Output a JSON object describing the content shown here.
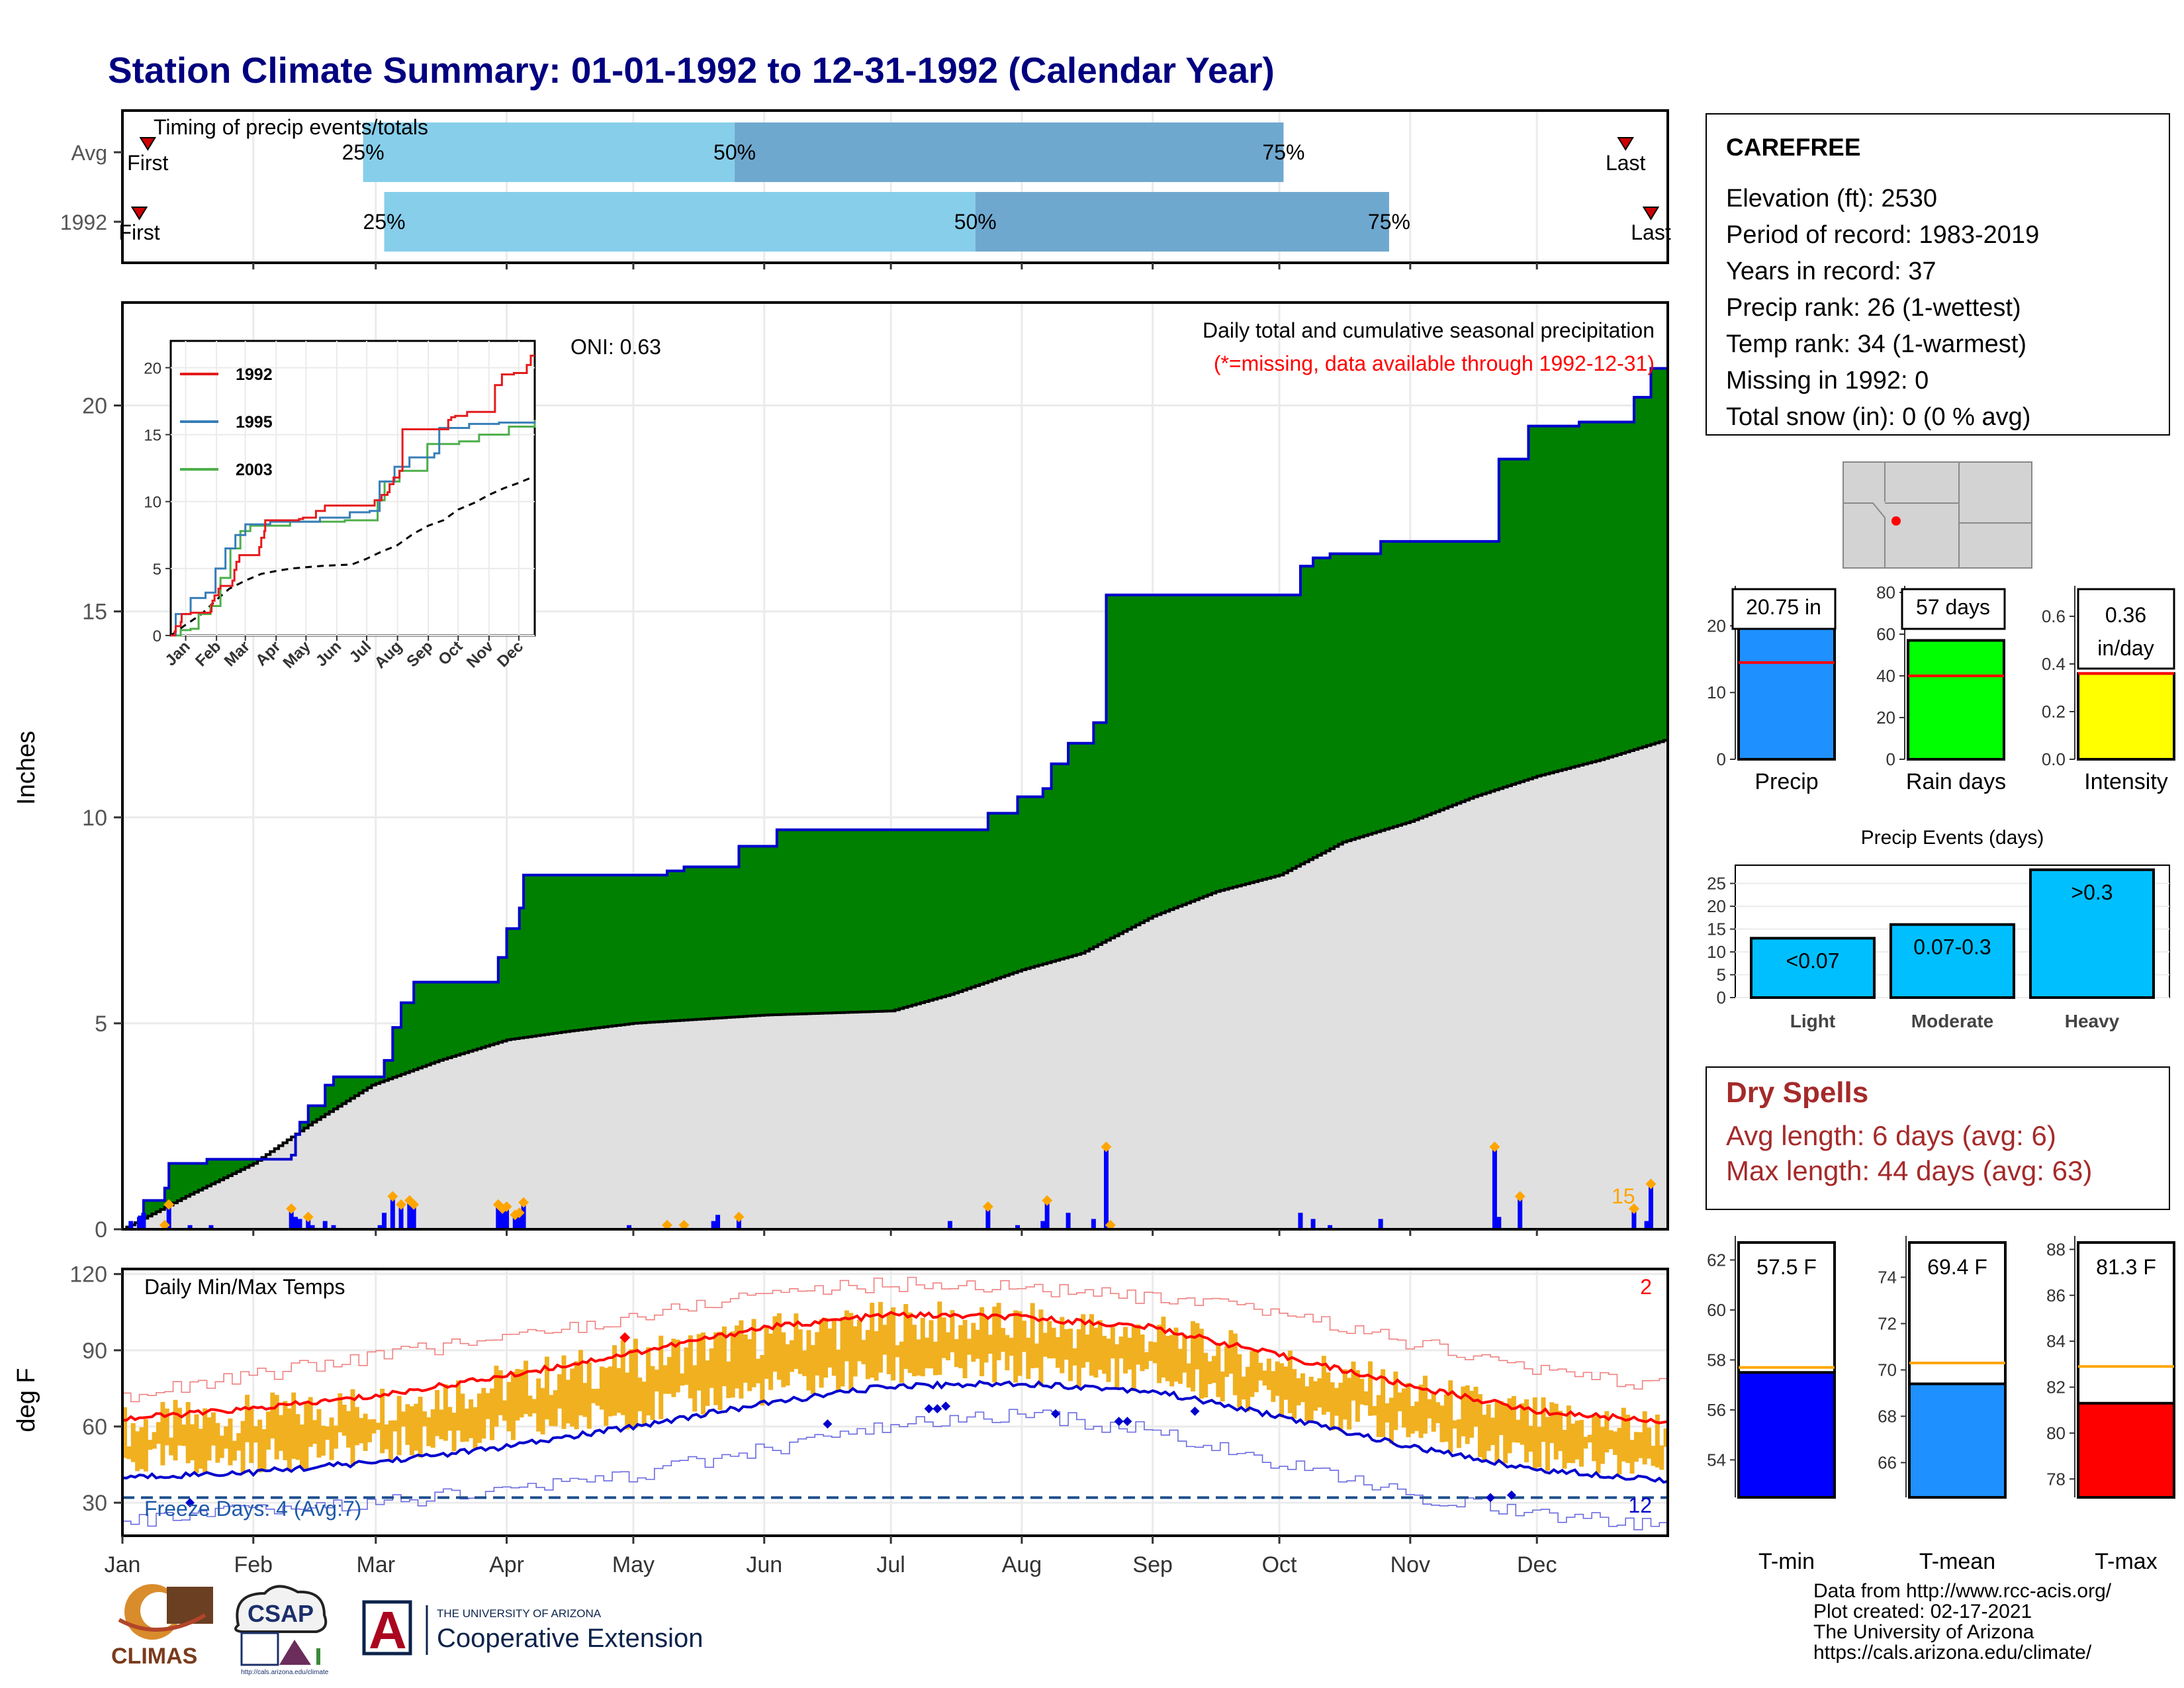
{
  "title": "Station Climate Summary: 01-01-1992 to 12-31-1992 (Calendar Year)",
  "timing_panel": {
    "title": "Timing of precip events/totals",
    "rows": [
      {
        "label": "Avg",
        "first_label": "First",
        "last_label": "Last",
        "first_day": 6,
        "p25_day": 57,
        "p50_day": 145,
        "p75_day": 275,
        "last_day": 356
      },
      {
        "label": "1992",
        "first_label": "First",
        "last_label": "Last",
        "first_day": 4,
        "p25_day": 62,
        "p50_day": 202,
        "p75_day": 300,
        "last_day": 362
      }
    ],
    "pct_labels": [
      "25%",
      "50%",
      "75%"
    ]
  },
  "precip_panel": {
    "ylabel": "Inches",
    "yticks": [
      0,
      5,
      10,
      15,
      20
    ],
    "ylim": [
      0,
      22.5
    ],
    "oni": "ONI: 0.63",
    "caption_line1": "Daily total and cumulative seasonal precipitation",
    "caption_line2": "(*=missing, data available through 1992-12-31)",
    "count_label": "15"
  },
  "inset": {
    "series": [
      {
        "name": "1992",
        "color": "#e41a1c"
      },
      {
        "name": "1995",
        "color": "#377eb8"
      },
      {
        "name": "2003",
        "color": "#4daf4a"
      }
    ],
    "yticks": [
      0,
      5,
      10,
      15,
      20
    ],
    "months": [
      "Jan",
      "Feb",
      "Mar",
      "Apr",
      "May",
      "Jun",
      "Jul",
      "Aug",
      "Sep",
      "Oct",
      "Nov",
      "Dec"
    ]
  },
  "temp_panel": {
    "ylabel": "deg F",
    "title": "Daily Min/Max Temps",
    "yticks": [
      30,
      60,
      90,
      120
    ],
    "ylim": [
      17,
      122
    ],
    "freeze_label": "Freeze Days: 4 (Avg:7)",
    "freeze_line": 32,
    "count_top": "2",
    "count_bottom": "12"
  },
  "months": [
    "Jan",
    "Feb",
    "Mar",
    "Apr",
    "May",
    "Jun",
    "Jul",
    "Aug",
    "Sep",
    "Oct",
    "Nov",
    "Dec"
  ],
  "station": {
    "name": "CAREFREE",
    "lines": [
      "Elevation (ft): 2530",
      "Period of record: 1983-2019",
      "Years in record: 37",
      "Precip rank: 26 (1-wettest)",
      "Temp rank: 34 (1-warmest)",
      "Missing in 1992: 0",
      "Total snow (in): 0 (0 % avg)"
    ]
  },
  "small_bars": [
    {
      "label": "Precip",
      "value": 20.75,
      "avg": 14.5,
      "text": "20.75 in",
      "color": "#1e90ff",
      "yticks": [
        0,
        10,
        20
      ],
      "ymax": 25
    },
    {
      "label": "Rain days",
      "value": 57,
      "avg": 40,
      "text": "57 days",
      "color": "#00ff00",
      "yticks": [
        0,
        20,
        40,
        60,
        80
      ],
      "ymax": 80
    },
    {
      "label": "Intensity",
      "value": 0.36,
      "avg": 0.36,
      "text": "0.36 in/day",
      "color": "#ffff00",
      "yticks": [
        "0.0",
        "0.2",
        "0.4",
        "0.6"
      ],
      "ymax": 0.7
    }
  ],
  "precip_events": {
    "title": "Precip Events (days)",
    "categories": [
      "Light",
      "Moderate",
      "Heavy"
    ],
    "values": [
      13,
      16,
      28
    ],
    "labels": [
      "<0.07",
      "0.07-0.3",
      ">0.3"
    ],
    "yticks": [
      0,
      5,
      10,
      15,
      20,
      25
    ],
    "ymax": 29
  },
  "dry_spells": {
    "title": "Dry Spells",
    "avg_line": "Avg length: 6 days (avg: 6)",
    "max_line": "Max length: 44 days (avg: 63)"
  },
  "temp_bars": [
    {
      "label": "T-min",
      "value": 57.5,
      "avg": 57.7,
      "text": "57.5 F",
      "color": "#0000ff",
      "yticks": [
        54,
        56,
        58,
        60,
        62
      ],
      "ylim": [
        52.5,
        62.7
      ]
    },
    {
      "label": "T-mean",
      "value": 69.4,
      "avg": 70.3,
      "text": "69.4 F",
      "color": "#1e90ff",
      "yticks": [
        66,
        68,
        70,
        72,
        74
      ],
      "ylim": [
        64.5,
        75.5
      ]
    },
    {
      "label": "T-max",
      "value": 81.3,
      "avg": 82.9,
      "text": "81.3 F",
      "color": "#ff0000",
      "yticks": [
        78,
        80,
        82,
        84,
        86,
        88
      ],
      "ylim": [
        77.2,
        88.3
      ]
    }
  ],
  "logos": {
    "climas": "CLIMAS",
    "csap": "CSAP",
    "csap_url": "http://cals.arizona.edu/climate",
    "ua_small": "THE UNIVERSITY OF ARIZONA",
    "ua_big": "Cooperative Extension",
    "ua_letter": "A"
  },
  "footer": [
    "Data from http://www.rcc-acis.org/",
    "Plot created: 02-17-2021",
    "The University of Arizona",
    "https://cals.arizona.edu/climate/"
  ],
  "colors": {
    "title": "#000080",
    "cum_fill": "#008000",
    "avg_fill": "#e0e0e0",
    "cum_line": "#0000cd",
    "daily_bar": "#0000ff",
    "marker": "#ffa500",
    "temp_band": "#f0b020",
    "dry": "#a52a2a",
    "red_text": "#ff0000"
  },
  "chart_data": [
    {
      "type": "area",
      "title": "Daily total and cumulative seasonal precipitation",
      "ylabel": "Inches",
      "ylim": [
        0,
        22.5
      ],
      "x_units": "day of year 1992",
      "cumulative_1992": [
        [
          0,
          0
        ],
        [
          4,
          0.3
        ],
        [
          5,
          0.7
        ],
        [
          10,
          1.0
        ],
        [
          11,
          1.6
        ],
        [
          20,
          1.7
        ],
        [
          40,
          1.8
        ],
        [
          41,
          2.3
        ],
        [
          42,
          2.6
        ],
        [
          44,
          3.0
        ],
        [
          48,
          3.5
        ],
        [
          50,
          3.7
        ],
        [
          60,
          3.7
        ],
        [
          62,
          4.1
        ],
        [
          64,
          4.9
        ],
        [
          66,
          5.5
        ],
        [
          69,
          6.0
        ],
        [
          78,
          6.0
        ],
        [
          89,
          6.6
        ],
        [
          91,
          7.3
        ],
        [
          94,
          7.8
        ],
        [
          95,
          8.6
        ],
        [
          120,
          8.6
        ],
        [
          129,
          8.7
        ],
        [
          133,
          8.8
        ],
        [
          140,
          8.8
        ],
        [
          146,
          9.3
        ],
        [
          155,
          9.7
        ],
        [
          196,
          9.7
        ],
        [
          205,
          10.1
        ],
        [
          212,
          10.5
        ],
        [
          218,
          10.7
        ],
        [
          220,
          11.3
        ],
        [
          224,
          11.8
        ],
        [
          230,
          12.3
        ],
        [
          233,
          15.4
        ],
        [
          268,
          15.4
        ],
        [
          279,
          16.1
        ],
        [
          282,
          16.3
        ],
        [
          286,
          16.4
        ],
        [
          298,
          16.7
        ],
        [
          320,
          16.7
        ],
        [
          326,
          18.7
        ],
        [
          333,
          19.5
        ],
        [
          345,
          19.6
        ],
        [
          356,
          19.6
        ],
        [
          358,
          20.2
        ],
        [
          362,
          20.9
        ],
        [
          366,
          20.9
        ]
      ],
      "cumulative_avg": [
        [
          0,
          0
        ],
        [
          15,
          0.8
        ],
        [
          31,
          1.6
        ],
        [
          45,
          2.6
        ],
        [
          59,
          3.5
        ],
        [
          75,
          4.1
        ],
        [
          91,
          4.6
        ],
        [
          105,
          4.8
        ],
        [
          121,
          5.0
        ],
        [
          152,
          5.2
        ],
        [
          167,
          5.25
        ],
        [
          182,
          5.3
        ],
        [
          196,
          5.7
        ],
        [
          213,
          6.3
        ],
        [
          227,
          6.7
        ],
        [
          244,
          7.6
        ],
        [
          259,
          8.2
        ],
        [
          274,
          8.6
        ],
        [
          289,
          9.4
        ],
        [
          305,
          9.9
        ],
        [
          320,
          10.5
        ],
        [
          335,
          11.0
        ],
        [
          350,
          11.4
        ],
        [
          366,
          11.9
        ]
      ],
      "daily_totals": [
        [
          2,
          0.2
        ],
        [
          4,
          0.3
        ],
        [
          5,
          0.4
        ],
        [
          10,
          0.1
        ],
        [
          11,
          0.6
        ],
        [
          16,
          0.1
        ],
        [
          21,
          0.1
        ],
        [
          40,
          0.5
        ],
        [
          41,
          0.3
        ],
        [
          42,
          0.25
        ],
        [
          44,
          0.3
        ],
        [
          45,
          0.1
        ],
        [
          48,
          0.2
        ],
        [
          50,
          0.1
        ],
        [
          61,
          0.1
        ],
        [
          62,
          0.4
        ],
        [
          64,
          0.8
        ],
        [
          66,
          0.6
        ],
        [
          68,
          0.7
        ],
        [
          69,
          0.6
        ],
        [
          89,
          0.6
        ],
        [
          90,
          0.5
        ],
        [
          91,
          0.55
        ],
        [
          93,
          0.35
        ],
        [
          94,
          0.4
        ],
        [
          95,
          0.65
        ],
        [
          120,
          0.1
        ],
        [
          129,
          0.1
        ],
        [
          133,
          0.1
        ],
        [
          140,
          0.2
        ],
        [
          141,
          0.35
        ],
        [
          146,
          0.3
        ],
        [
          196,
          0.2
        ],
        [
          205,
          0.55
        ],
        [
          212,
          0.1
        ],
        [
          218,
          0.2
        ],
        [
          219,
          0.7
        ],
        [
          224,
          0.4
        ],
        [
          230,
          0.25
        ],
        [
          233,
          2.0
        ],
        [
          234,
          0.1
        ],
        [
          279,
          0.4
        ],
        [
          282,
          0.25
        ],
        [
          286,
          0.1
        ],
        [
          298,
          0.25
        ],
        [
          325,
          2.0
        ],
        [
          326,
          0.3
        ],
        [
          331,
          0.8
        ],
        [
          358,
          0.5
        ],
        [
          361,
          0.2
        ],
        [
          362,
          1.1
        ]
      ]
    },
    {
      "type": "line",
      "title": "Daily Min/Max Temps",
      "ylabel": "deg F",
      "ylim": [
        17,
        122
      ],
      "x_units": "day of year 1992",
      "avg_max": [
        [
          0,
          63
        ],
        [
          31,
          67
        ],
        [
          60,
          72
        ],
        [
          91,
          80
        ],
        [
          121,
          89
        ],
        [
          152,
          99
        ],
        [
          182,
          104
        ],
        [
          213,
          103
        ],
        [
          244,
          99
        ],
        [
          274,
          88
        ],
        [
          305,
          76
        ],
        [
          335,
          66
        ],
        [
          366,
          62
        ]
      ],
      "avg_min": [
        [
          0,
          40
        ],
        [
          31,
          42
        ],
        [
          60,
          46
        ],
        [
          91,
          52
        ],
        [
          121,
          60
        ],
        [
          152,
          69
        ],
        [
          182,
          76
        ],
        [
          213,
          77
        ],
        [
          244,
          74
        ],
        [
          274,
          64
        ],
        [
          305,
          52
        ],
        [
          335,
          43
        ],
        [
          366,
          39
        ]
      ],
      "record_max": [
        [
          0,
          72
        ],
        [
          31,
          80
        ],
        [
          60,
          88
        ],
        [
          91,
          95
        ],
        [
          121,
          103
        ],
        [
          152,
          113
        ],
        [
          182,
          116
        ],
        [
          213,
          115
        ],
        [
          244,
          110
        ],
        [
          274,
          105
        ],
        [
          305,
          93
        ],
        [
          335,
          82
        ],
        [
          366,
          76
        ]
      ],
      "record_min": [
        [
          0,
          22
        ],
        [
          31,
          27
        ],
        [
          60,
          30
        ],
        [
          91,
          35
        ],
        [
          121,
          41
        ],
        [
          152,
          51
        ],
        [
          182,
          60
        ],
        [
          213,
          65
        ],
        [
          244,
          58
        ],
        [
          274,
          45
        ],
        [
          305,
          33
        ],
        [
          335,
          26
        ],
        [
          366,
          20
        ]
      ]
    },
    {
      "type": "bar",
      "title": "Precip Events (days)",
      "categories": [
        "Light",
        "Moderate",
        "Heavy"
      ],
      "values": [
        13,
        16,
        28
      ]
    }
  ]
}
